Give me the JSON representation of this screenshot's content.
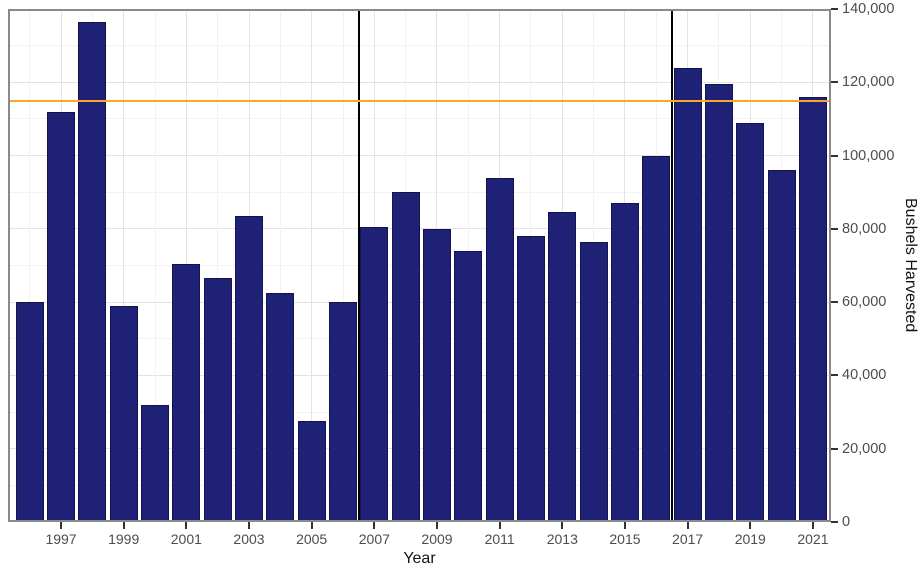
{
  "chart_data": {
    "type": "bar",
    "title": "",
    "xlabel": "Year",
    "ylabel": "Bushels Harvested",
    "ylim": [
      0,
      140000
    ],
    "categories": [
      1996,
      1997,
      1998,
      1999,
      2000,
      2001,
      2002,
      2003,
      2004,
      2005,
      2006,
      2007,
      2008,
      2009,
      2010,
      2011,
      2012,
      2013,
      2014,
      2015,
      2016,
      2017,
      2018,
      2019,
      2020,
      2021
    ],
    "values": [
      60000,
      112000,
      136500,
      59000,
      32000,
      70500,
      66500,
      83500,
      62500,
      27500,
      60000,
      80500,
      90000,
      80000,
      74000,
      94000,
      78000,
      84500,
      76500,
      87000,
      100000,
      124000,
      119500,
      109000,
      96000,
      116000
    ],
    "x_ticks": {
      "years": [
        1997,
        1999,
        2001,
        2003,
        2005,
        2007,
        2009,
        2011,
        2013,
        2015,
        2017,
        2019,
        2021
      ],
      "labels": [
        "1997",
        "1999",
        "2001",
        "2003",
        "2005",
        "2007",
        "2009",
        "2011",
        "2013",
        "2015",
        "2017",
        "2019",
        "2021"
      ]
    },
    "y_ticks": {
      "values": [
        0,
        20000,
        40000,
        60000,
        80000,
        100000,
        120000,
        140000
      ],
      "labels": [
        "0",
        "20,000",
        "40,000",
        "60,000",
        "80,000",
        "100,000",
        "120,000",
        "140,000"
      ],
      "side": "right"
    },
    "grid": {
      "horizontal_step": 10000,
      "vertical_step_years": 1,
      "visible": true
    },
    "legend": "none",
    "reference_lines": {
      "horizontal": [
        {
          "value": 115000,
          "color": "#F9A62A",
          "style": "solid"
        }
      ],
      "vertical": [
        {
          "year": 2006.5,
          "color": "#000000"
        },
        {
          "year": 2016.5,
          "color": "#000000"
        }
      ]
    }
  },
  "colors": {
    "bar_fill": "#1F2176",
    "bar_border": "#12124D",
    "reference_line": "#F9A62A",
    "era_line": "#000000",
    "grid_major": "#E3E3E3",
    "grid_minor": "#F2F2F2",
    "panel_border": "#8A8A8A",
    "tick_mark": "#333333",
    "tick_label": "#4D4D4D",
    "axis_title": "#141414",
    "background": "#FFFFFF"
  }
}
